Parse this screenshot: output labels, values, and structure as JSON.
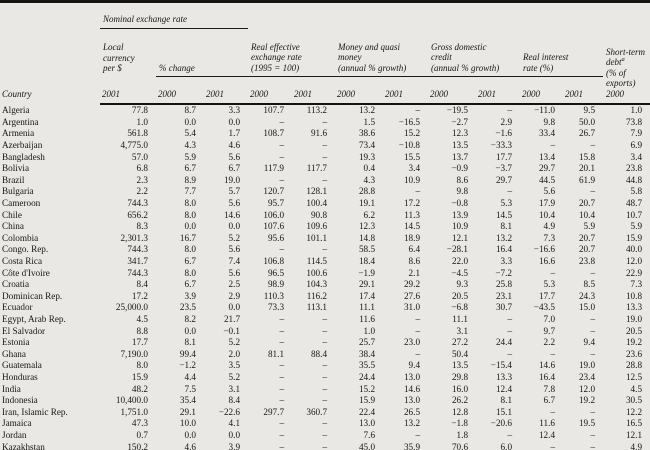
{
  "header": {
    "country": "Country",
    "nominal_group": "Nominal exchange rate",
    "local_currency": "Local\ncurrency\nper $",
    "pct_change": "% change",
    "reer": "Real effective\nexchange rate\n(1995 = 100)",
    "money": "Money and quasi\nmoney\n(annual % growth)",
    "credit": "Gross domestic\ncredit\n(annual % growth)",
    "real_interest": "Real interest\nrate (%)",
    "short_debt_1": "Short-term\ndebt",
    "short_debt_sup": "a",
    "short_debt_2": "\n(% of\nexports)\n2000",
    "years": [
      "2001",
      "2000",
      "2001",
      "2000",
      "2001",
      "2000",
      "2001",
      "2000",
      "2001",
      "2000",
      "2001"
    ]
  },
  "rows": [
    {
      "country": "Algeria",
      "values": [
        "77.8",
        "8.7",
        "3.3",
        "107.7",
        "113.2",
        "13.2",
        "–",
        "−19.5",
        "–",
        "−11.0",
        "9.5",
        "1.0"
      ]
    },
    {
      "country": "Argentina",
      "values": [
        "1.0",
        "0.0",
        "0.0",
        "–",
        "–",
        "1.5",
        "−16.5",
        "−2.7",
        "2.9",
        "9.8",
        "50.0",
        "73.8"
      ]
    },
    {
      "country": "Armenia",
      "values": [
        "561.8",
        "5.4",
        "1.7",
        "108.7",
        "91.6",
        "38.6",
        "15.2",
        "12.3",
        "−1.6",
        "33.4",
        "26.7",
        "7.9"
      ]
    },
    {
      "country": "Azerbaijan",
      "values": [
        "4,775.0",
        "4.3",
        "4.6",
        "–",
        "–",
        "73.4",
        "−10.8",
        "13.5",
        "−33.3",
        "–",
        "–",
        "6.9"
      ]
    },
    {
      "country": "Bangladesh",
      "values": [
        "57.0",
        "5.9",
        "5.6",
        "–",
        "–",
        "19.3",
        "15.5",
        "13.7",
        "17.7",
        "13.4",
        "15.8",
        "3.4"
      ]
    },
    {
      "country": "Bolivia",
      "values": [
        "6.8",
        "6.7",
        "6.7",
        "117.9",
        "117.7",
        "0.4",
        "3.4",
        "−0.9",
        "−3.7",
        "29.7",
        "20.1",
        "23.8"
      ]
    },
    {
      "country": "Brazil",
      "values": [
        "2.3",
        "8.9",
        "19.0",
        "–",
        "–",
        "4.3",
        "10.9",
        "8.6",
        "29.7",
        "44.5",
        "61.9",
        "44.8"
      ]
    },
    {
      "country": "Bulgaria",
      "values": [
        "2.2",
        "7.7",
        "5.7",
        "120.7",
        "128.1",
        "28.8",
        "–",
        "9.8",
        "–",
        "5.6",
        "–",
        "5.8"
      ]
    },
    {
      "country": "Cameroon",
      "values": [
        "744.3",
        "8.0",
        "5.6",
        "95.7",
        "100.4",
        "19.1",
        "17.2",
        "−0.8",
        "5.3",
        "17.9",
        "20.7",
        "48.7"
      ]
    },
    {
      "country": "Chile",
      "values": [
        "656.2",
        "8.0",
        "14.6",
        "106.0",
        "90.8",
        "6.2",
        "11.3",
        "13.9",
        "14.5",
        "10.4",
        "10.4",
        "10.7"
      ]
    },
    {
      "country": "China",
      "values": [
        "8.3",
        "0.0",
        "0.0",
        "107.6",
        "109.6",
        "12.3",
        "14.5",
        "10.9",
        "8.1",
        "4.9",
        "5.9",
        "5.9"
      ]
    },
    {
      "country": "Colombia",
      "values": [
        "2,301.3",
        "16.7",
        "5.2",
        "95.6",
        "101.1",
        "14.8",
        "18.9",
        "12.1",
        "13.2",
        "7.3",
        "20.7",
        "15.9"
      ]
    },
    {
      "country": "Congo. Rep.",
      "values": [
        "744.3",
        "8.0",
        "5.6",
        "–",
        "–",
        "58.5",
        "6.4",
        "−28.1",
        "16.4",
        "−16.6",
        "20.7",
        "40.0"
      ]
    },
    {
      "country": "Costa Rica",
      "values": [
        "341.7",
        "6.7",
        "7.4",
        "106.8",
        "114.5",
        "18.4",
        "8.6",
        "22.0",
        "3.3",
        "16.6",
        "23.8",
        "12.0"
      ]
    },
    {
      "country": "Côte d'Ivoire",
      "values": [
        "744.3",
        "8.0",
        "5.6",
        "96.5",
        "100.6",
        "−1.9",
        "2.1",
        "−4.5",
        "−7.2",
        "–",
        "–",
        "22.9"
      ]
    },
    {
      "country": "Croatia",
      "values": [
        "8.4",
        "6.7",
        "2.5",
        "98.9",
        "104.3",
        "29.1",
        "29.2",
        "9.3",
        "25.8",
        "5.3",
        "8.5",
        "7.3"
      ]
    },
    {
      "country": "Dominican Rep.",
      "values": [
        "17.2",
        "3.9",
        "2.9",
        "110.3",
        "116.2",
        "17.4",
        "27.6",
        "20.5",
        "23.1",
        "17.7",
        "24.3",
        "10.8"
      ]
    },
    {
      "country": "Ecuador",
      "values": [
        "25,000.0",
        "23.5",
        "0.0",
        "73.3",
        "113.1",
        "11.1",
        "31.0",
        "−6.8",
        "30.7",
        "−43.5",
        "15.0",
        "13.3"
      ]
    },
    {
      "country": "Egypt, Arab Rep.",
      "values": [
        "4.5",
        "8.2",
        "21.7",
        "–",
        "–",
        "11.6",
        "–",
        "11.1",
        "–",
        "7.0",
        "–",
        "19.0"
      ]
    },
    {
      "country": "El Salvador",
      "values": [
        "8.8",
        "0.0",
        "−0.1",
        "–",
        "–",
        "1.0",
        "–",
        "3.1",
        "–",
        "9.7",
        "–",
        "20.5"
      ]
    },
    {
      "country": "Estonia",
      "values": [
        "17.7",
        "8.1",
        "5.2",
        "–",
        "–",
        "25.7",
        "23.0",
        "27.2",
        "24.4",
        "2.2",
        "9.4",
        "19.2"
      ]
    },
    {
      "country": "Ghana",
      "values": [
        "7,190.0",
        "99.4",
        "2.0",
        "81.1",
        "88.4",
        "38.4",
        "–",
        "50.4",
        "–",
        "–",
        "–",
        "23.6"
      ]
    },
    {
      "country": "Guatemala",
      "values": [
        "8.0",
        "−1.2",
        "3.5",
        "–",
        "–",
        "35.5",
        "9.4",
        "13.5",
        "−15.4",
        "14.6",
        "19.0",
        "28.8"
      ]
    },
    {
      "country": "Honduras",
      "values": [
        "15.9",
        "4.4",
        "5.2",
        "–",
        "–",
        "24.4",
        "13.0",
        "29.8",
        "13.3",
        "16.4",
        "23.4",
        "12.5"
      ]
    },
    {
      "country": "India",
      "values": [
        "48.2",
        "7.5",
        "3.1",
        "–",
        "–",
        "15.2",
        "14.6",
        "16.0",
        "12.4",
        "7.8",
        "12.0",
        "4.5"
      ]
    },
    {
      "country": "Indonesia",
      "values": [
        "10,400.0",
        "35.4",
        "8.4",
        "–",
        "–",
        "15.9",
        "13.0",
        "26.2",
        "8.1",
        "6.7",
        "19.2",
        "30.5"
      ]
    },
    {
      "country": "Iran, Islamic Rep.",
      "values": [
        "1,751.0",
        "29.1",
        "−22.6",
        "297.7",
        "360.7",
        "22.4",
        "26.5",
        "12.8",
        "15.1",
        "–",
        "–",
        "12.2"
      ]
    },
    {
      "country": "Jamaica",
      "values": [
        "47.3",
        "10.0",
        "4.1",
        "–",
        "–",
        "13.0",
        "13.2",
        "−1.8",
        "−20.6",
        "11.6",
        "19.5",
        "16.5"
      ]
    },
    {
      "country": "Jordan",
      "values": [
        "0.7",
        "0.0",
        "0.0",
        "–",
        "–",
        "7.6",
        "–",
        "1.8",
        "–",
        "12.4",
        "–",
        "12.1"
      ]
    },
    {
      "country": "Kazakhstan",
      "values": [
        "150.2",
        "4.6",
        "3.9",
        "–",
        "–",
        "45.0",
        "35.9",
        "70.6",
        "6.0",
        "–",
        "–",
        "4.9"
      ]
    }
  ]
}
